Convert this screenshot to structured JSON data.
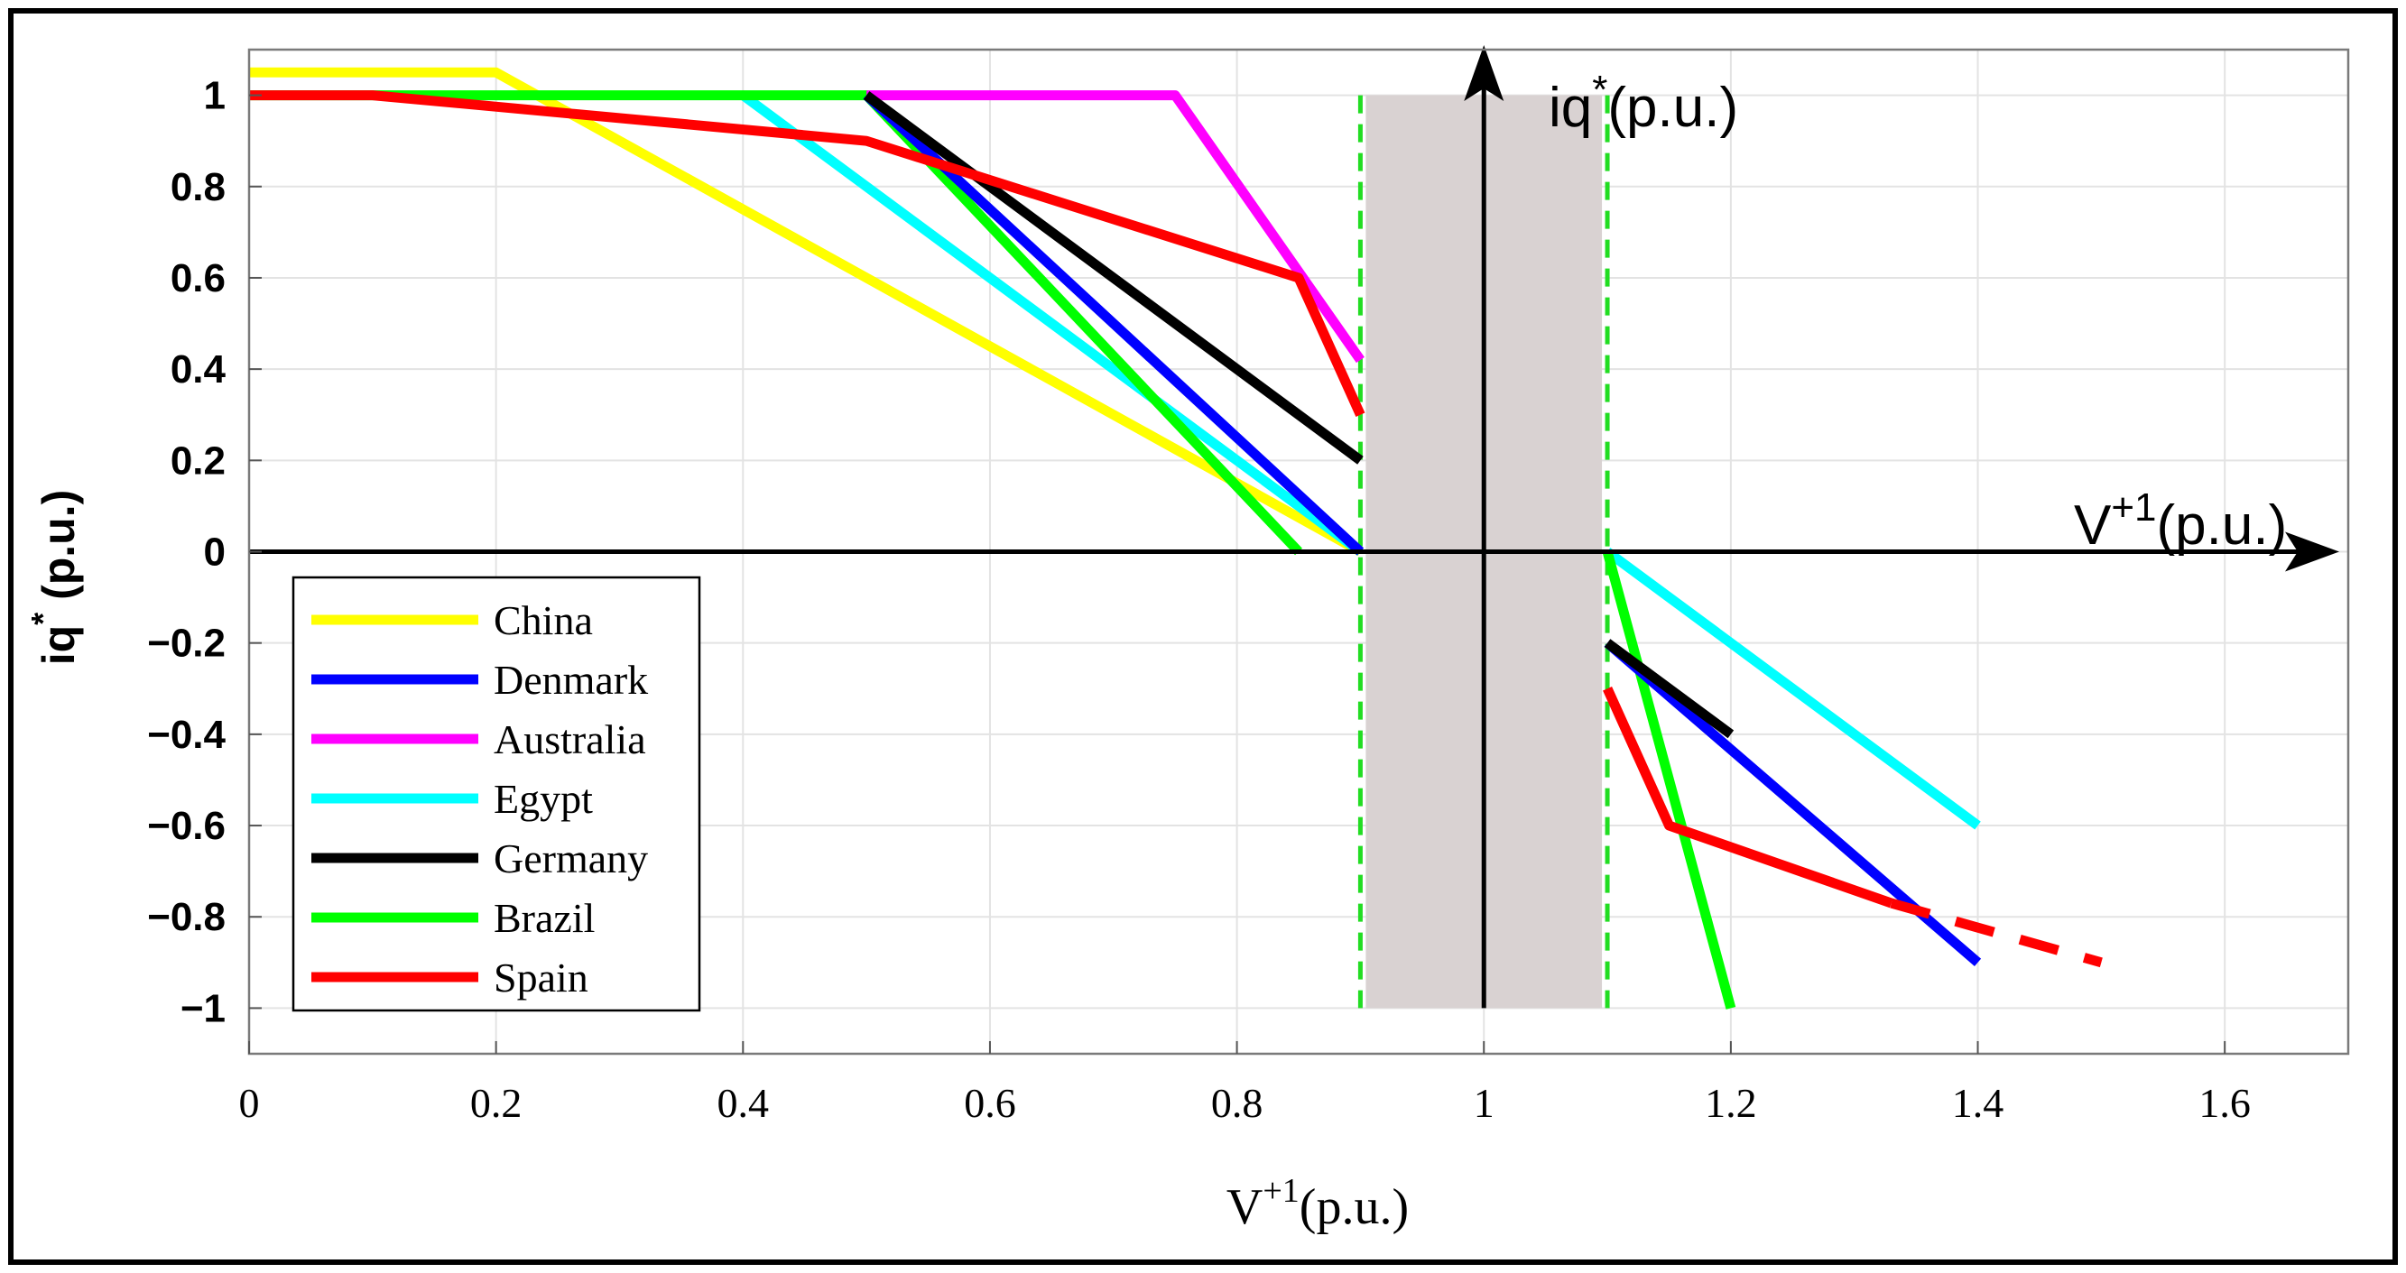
{
  "chart_data": {
    "type": "line",
    "title": "",
    "xlabel": "V+1(p.u.)",
    "xlabel_main": "V",
    "xlabel_sup": "+1",
    "xlabel_unit": "(p.u.)",
    "ylabel_main": "iq",
    "ylabel_sup": "*",
    "ylabel_unit": " (p.u.)",
    "xlim": [
      0,
      1.7
    ],
    "ylim": [
      -1.1,
      1.1
    ],
    "xticks": [
      0,
      0.2,
      0.4,
      0.6,
      0.8,
      1,
      1.2,
      1.4,
      1.6
    ],
    "xtick_labels": [
      "0",
      "0.2",
      "0.4",
      "0.6",
      "0.8",
      "1",
      "1.2",
      "1.4",
      "1.6"
    ],
    "yticks": [
      1,
      0.8,
      0.6,
      0.4,
      0.2,
      0,
      -0.2,
      -0.4,
      -0.6,
      -0.8,
      -1
    ],
    "ytick_labels": [
      "1",
      "0.8",
      "0.6",
      "0.4",
      "0.2",
      "0",
      "-0.2",
      "-0.4",
      "-0.6",
      "-0.8",
      "-1"
    ],
    "grid": true,
    "deadband": {
      "x_range": [
        0.9,
        1.1
      ],
      "y_range": [
        -1,
        1
      ],
      "color": "#d9d2d2",
      "boundary_color": "#22dd22"
    },
    "inner_axes": {
      "origin": [
        1,
        0
      ],
      "horizontal_label_main": "V",
      "horizontal_label_sup": "+1",
      "horizontal_label_unit": "(p.u.)",
      "vertical_label_main": "iq",
      "vertical_label_sup": "*",
      "vertical_label_unit": "(p.u.)"
    },
    "legend_position": "bottom-left",
    "series": [
      {
        "name": "China",
        "color": "#ffff00",
        "segments": [
          [
            [
              0,
              1.05
            ],
            [
              0.2,
              1.05
            ],
            [
              0.9,
              0
            ]
          ]
        ]
      },
      {
        "name": "Denmark",
        "color": "#0000ff",
        "segments": [
          [
            [
              0.5,
              1
            ],
            [
              0.9,
              0
            ]
          ],
          [
            [
              1.1,
              -0.2
            ],
            [
              1.4,
              -0.9
            ]
          ]
        ]
      },
      {
        "name": "Australia",
        "color": "#ff00ff",
        "segments": [
          [
            [
              0.5,
              1
            ],
            [
              0.75,
              1
            ],
            [
              0.9,
              0.42
            ]
          ]
        ]
      },
      {
        "name": "Egypt",
        "color": "#00ffff",
        "segments": [
          [
            [
              0.4,
              1
            ],
            [
              0.9,
              0
            ]
          ],
          [
            [
              1.1,
              0
            ],
            [
              1.4,
              -0.6
            ]
          ]
        ]
      },
      {
        "name": "Germany",
        "color": "#000000",
        "segments": [
          [
            [
              0.5,
              1
            ],
            [
              0.9,
              0.2
            ]
          ],
          [
            [
              1.1,
              -0.2
            ],
            [
              1.2,
              -0.4
            ]
          ]
        ]
      },
      {
        "name": "Brazil",
        "color": "#00ff00",
        "segments": [
          [
            [
              0,
              1
            ],
            [
              0.5,
              1
            ],
            [
              0.85,
              0
            ]
          ],
          [
            [
              1.1,
              0
            ],
            [
              1.2,
              -1
            ]
          ]
        ]
      },
      {
        "name": "Spain",
        "color": "#ff0000",
        "segments": [
          [
            [
              0,
              1
            ],
            [
              0.1,
              1
            ],
            [
              0.5,
              0.9
            ],
            [
              0.85,
              0.6
            ],
            [
              0.9,
              0.3
            ]
          ],
          [
            [
              1.1,
              -0.3
            ],
            [
              1.15,
              -0.6
            ],
            [
              1.33,
              -0.77
            ]
          ]
        ],
        "dashed_segments": [
          [
            [
              1.33,
              -0.77
            ],
            [
              1.5,
              -0.9
            ]
          ]
        ]
      }
    ]
  }
}
